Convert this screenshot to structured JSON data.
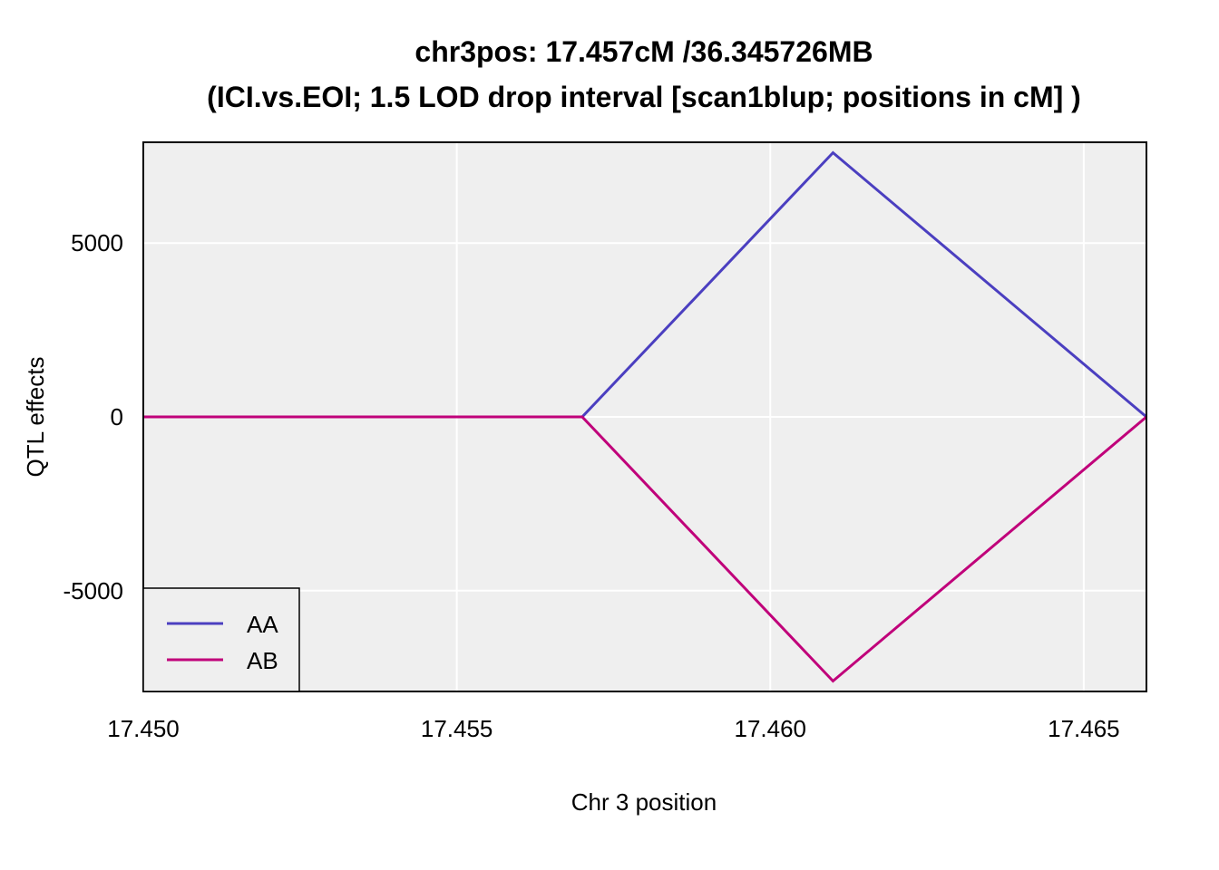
{
  "chart_data": {
    "type": "line",
    "title_line1": "chr3pos: 17.457cM /36.345726MB",
    "title_line2": "(ICI.vs.EOI; 1.5 LOD drop interval [scan1blup; positions in cM] )",
    "xlabel": "Chr 3 position",
    "ylabel": "QTL effects",
    "xlim": [
      17.45,
      17.466
    ],
    "ylim": [
      -7900,
      7900
    ],
    "x_ticks": [
      17.45,
      17.455,
      17.46,
      17.465
    ],
    "x_tick_labels": [
      "17.450",
      "17.455",
      "17.460",
      "17.465"
    ],
    "y_ticks": [
      -5000,
      0,
      5000
    ],
    "y_tick_labels": [
      "-5000",
      "0",
      "5000"
    ],
    "grid": true,
    "legend_position": "bottom-left",
    "background_color": "#efefef",
    "x": [
      17.45,
      17.457,
      17.461,
      17.466
    ],
    "series": [
      {
        "name": "AA",
        "color": "#4b3fc0",
        "values": [
          0,
          0,
          7600,
          0
        ]
      },
      {
        "name": "AB",
        "color": "#c0007a",
        "values": [
          0,
          0,
          -7600,
          0
        ]
      }
    ]
  }
}
